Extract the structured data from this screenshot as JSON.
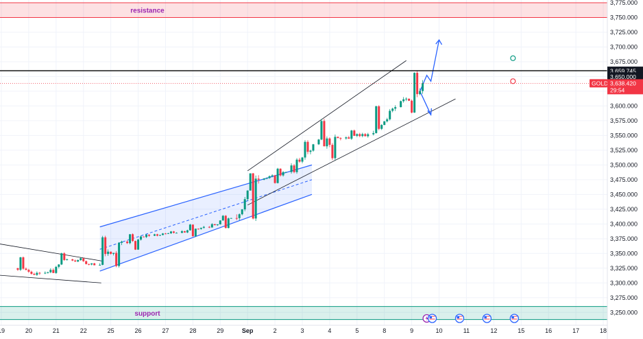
{
  "chart_data": {
    "type": "candlestick",
    "symbol": "GOLD",
    "price_axis": {
      "min": 3237.5,
      "max": 3775,
      "ticks": [
        3775,
        3750,
        3725,
        3700,
        3675,
        3650,
        3625,
        3600,
        3575,
        3550,
        3525,
        3500,
        3475,
        3450,
        3425,
        3400,
        3375,
        3350,
        3325,
        3300,
        3275,
        3250
      ],
      "tick_labels": [
        "3,775.000",
        "3,750.000",
        "3,725.000",
        "3,700.000",
        "3,675.000",
        "3,650.000",
        "3,625.000",
        "3,600.000",
        "3,575.000",
        "3,550.000",
        "3,525.000",
        "3,500.000",
        "3,475.000",
        "3,450.000",
        "3,425.000",
        "3,400.000",
        "3,375.000",
        "3,350.000",
        "3,325.000",
        "3,300.000",
        "3,275.000",
        "3,250.000"
      ]
    },
    "time_axis": {
      "labels": [
        "19",
        "20",
        "21",
        "22",
        "25",
        "26",
        "27",
        "28",
        "29",
        "Sep",
        "2",
        "3",
        "4",
        "5",
        "8",
        "9",
        "10",
        "11",
        "12",
        "15",
        "16",
        "17",
        "18"
      ],
      "positions": [
        -0.7,
        0.3,
        1.3,
        2.3,
        3.3,
        4.3,
        5.3,
        6.3,
        7.3,
        8.3,
        9.3,
        10.3,
        11.3,
        12.3,
        13.3,
        14.3,
        15.3,
        16.3,
        17.3,
        18.3,
        19.3,
        20.3,
        21.3
      ],
      "range": [
        -0.75,
        21.45
      ]
    },
    "daily_ohlc": [
      {
        "day": "20",
        "x": 0.3,
        "o": 3325,
        "h": 3345,
        "l": 3312,
        "c": 3316
      },
      {
        "day": "21",
        "x": 1.3,
        "o": 3316,
        "h": 3352,
        "l": 3315,
        "c": 3340
      },
      {
        "day": "22",
        "x": 2.3,
        "o": 3340,
        "h": 3343,
        "l": 3321,
        "c": 3330
      },
      {
        "day": "25",
        "x": 3.3,
        "o": 3330,
        "h": 3380,
        "l": 3326,
        "c": 3370
      },
      {
        "day": "26",
        "x": 4.3,
        "o": 3370,
        "h": 3384,
        "l": 3355,
        "c": 3380
      },
      {
        "day": "27",
        "x": 5.3,
        "o": 3380,
        "h": 3388,
        "l": 3372,
        "c": 3385
      },
      {
        "day": "28",
        "x": 6.3,
        "o": 3385,
        "h": 3400,
        "l": 3378,
        "c": 3395
      },
      {
        "day": "29",
        "x": 7.3,
        "o": 3395,
        "h": 3415,
        "l": 3392,
        "c": 3410
      },
      {
        "day": "Sep",
        "x": 8.3,
        "o": 3410,
        "h": 3490,
        "l": 3405,
        "c": 3475
      },
      {
        "day": "2",
        "x": 9.3,
        "o": 3475,
        "h": 3495,
        "l": 3468,
        "c": 3488
      },
      {
        "day": "3",
        "x": 10.3,
        "o": 3488,
        "h": 3542,
        "l": 3485,
        "c": 3535
      },
      {
        "day": "4",
        "x": 11.3,
        "o": 3535,
        "h": 3578,
        "l": 3508,
        "c": 3545
      },
      {
        "day": "5",
        "x": 12.3,
        "o": 3545,
        "h": 3560,
        "l": 3528,
        "c": 3552
      },
      {
        "day": "8",
        "x": 13.3,
        "o": 3552,
        "h": 3602,
        "l": 3550,
        "c": 3598
      },
      {
        "day": "9",
        "x": 14.3,
        "o": 3598,
        "h": 3660,
        "l": 3585,
        "c": 3638.42
      }
    ],
    "zones": [
      {
        "label": "resistance",
        "from": 3750,
        "to": 3775,
        "color": "#f23645"
      },
      {
        "label": "support",
        "from": 3238,
        "to": 3260,
        "color": "#089981"
      }
    ],
    "price_tags": [
      {
        "text": "3,659.745",
        "price": 3659.745,
        "bg": "#131722"
      },
      {
        "text": "3,650.000",
        "price": 3650,
        "bg": "#131722"
      }
    ],
    "current_price": {
      "symbol": "GOLD",
      "price_text": "3,638.420",
      "countdown": "29:54",
      "price": 3638.42,
      "color": "#f23645"
    },
    "horizontal_line": {
      "price": 3659.745,
      "color": "#000000"
    },
    "event_icons": [
      {
        "name": "flash-event",
        "x": 14.85
      },
      {
        "name": "us-flag-event",
        "x": 15.05
      },
      {
        "name": "us-flag-event",
        "x": 16.05
      },
      {
        "name": "us-flag-event",
        "x": 17.05
      },
      {
        "name": "us-flag-event",
        "x": 18.05
      }
    ],
    "markers": [
      {
        "x": 18.0,
        "price": 3681,
        "color": "#089981"
      },
      {
        "x": 18.0,
        "price": 3642,
        "color": "#f23645"
      }
    ]
  },
  "colors": {
    "up": "#089981",
    "down": "#f23645",
    "channel": "#2962ff",
    "trendline": "#131722"
  }
}
